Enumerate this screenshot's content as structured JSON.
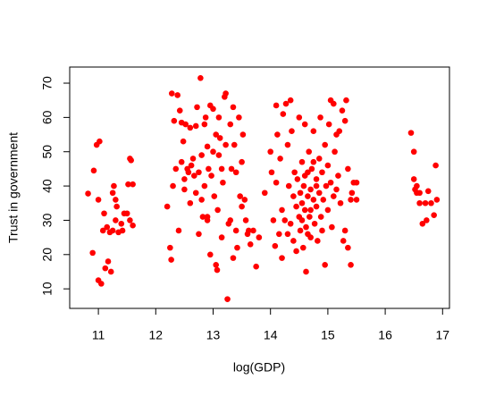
{
  "chart_data": {
    "type": "scatter",
    "x_label": "log(GDP)",
    "y_label": "Trust in government",
    "color": "#ff0000",
    "xlim": [
      10.5,
      17.12
    ],
    "ylim": [
      4.3,
      74.7
    ],
    "xticks": [
      11,
      12,
      13,
      14,
      15,
      16,
      17
    ],
    "yticks": [
      10,
      20,
      30,
      40,
      50,
      60,
      70
    ],
    "x": [
      10.82,
      10.9,
      10.92,
      10.97,
      11.0,
      11.02,
      11.05,
      11.0,
      11.08,
      11.1,
      11.12,
      11.15,
      11.17,
      11.2,
      11.22,
      11.25,
      11.27,
      11.3,
      11.32,
      11.35,
      11.4,
      11.42,
      11.45,
      11.5,
      11.52,
      11.55,
      11.57,
      11.55,
      11.6,
      11.6,
      11.25,
      11.3,
      12.2,
      12.25,
      12.27,
      12.28,
      12.3,
      12.32,
      12.35,
      12.38,
      12.4,
      12.42,
      12.45,
      12.45,
      12.48,
      12.5,
      12.5,
      12.52,
      12.55,
      12.57,
      12.6,
      12.6,
      12.62,
      12.65,
      12.67,
      12.7,
      12.7,
      12.72,
      12.75,
      12.78,
      12.8,
      12.8,
      12.82,
      12.85,
      12.85,
      12.87,
      12.9,
      12.9,
      12.92,
      12.95,
      12.95,
      12.97,
      13.0,
      13.0,
      13.02,
      13.05,
      13.05,
      13.07,
      13.08,
      13.1,
      13.1,
      13.12,
      13.15,
      13.17,
      13.2,
      13.22,
      13.22,
      13.25,
      13.27,
      13.3,
      13.3,
      13.32,
      13.35,
      13.35,
      13.37,
      13.4,
      13.4,
      13.42,
      13.45,
      13.47,
      13.5,
      13.5,
      13.52,
      13.55,
      13.57,
      13.6,
      13.62,
      13.65,
      13.7,
      13.75,
      13.8,
      12.75,
      13.15,
      12.9,
      13.9,
      14.0,
      14.02,
      14.05,
      14.08,
      14.1,
      14.1,
      14.12,
      14.15,
      14.17,
      14.2,
      14.2,
      14.22,
      14.25,
      14.27,
      14.3,
      14.3,
      14.32,
      14.35,
      14.35,
      14.37,
      14.4,
      14.4,
      14.42,
      14.45,
      14.45,
      14.47,
      14.5,
      14.5,
      14.52,
      14.52,
      14.55,
      14.55,
      14.57,
      14.58,
      14.6,
      14.6,
      14.62,
      14.62,
      14.65,
      14.65,
      14.67,
      14.68,
      14.7,
      14.7,
      14.72,
      14.75,
      14.75,
      14.77,
      14.8,
      14.8,
      14.82,
      14.85,
      14.85,
      14.87,
      14.88,
      14.9,
      14.9,
      14.92,
      14.95,
      14.95,
      14.97,
      15.0,
      15.0,
      15.02,
      15.05,
      15.05,
      15.07,
      15.1,
      15.1,
      15.12,
      15.15,
      15.15,
      15.18,
      15.2,
      15.22,
      15.25,
      15.27,
      15.3,
      15.3,
      15.32,
      15.35,
      15.35,
      15.4,
      15.4,
      15.42,
      15.45,
      15.5,
      15.5,
      14.6,
      14.7,
      14.55,
      14.8,
      14.65,
      14.75,
      16.45,
      16.5,
      16.5,
      16.52,
      16.55,
      16.6,
      16.6,
      16.65,
      16.7,
      16.72,
      16.75,
      16.8,
      16.85,
      16.88,
      16.9,
      16.55
    ],
    "values": [
      37.8,
      20.5,
      44.5,
      52,
      12.5,
      53,
      11.5,
      36,
      27,
      32,
      16,
      28,
      18,
      26.5,
      15,
      38,
      40,
      36,
      34,
      26.5,
      29,
      27,
      32,
      32,
      40.5,
      48,
      47.5,
      30,
      28.5,
      40.5,
      27,
      30,
      34,
      22,
      18.5,
      67,
      40,
      59,
      45,
      66.5,
      27,
      62,
      58.5,
      47,
      53,
      42,
      39,
      58,
      45,
      44,
      57,
      35,
      46,
      48,
      43,
      57.5,
      38,
      63,
      44,
      71.5,
      49,
      36,
      31,
      58,
      40,
      60,
      51.5,
      30,
      45,
      63.5,
      20,
      43,
      62.5,
      50,
      37,
      55,
      17,
      15.5,
      33,
      49,
      60,
      54,
      45,
      41,
      66,
      67,
      52,
      7,
      29,
      30,
      58,
      45,
      63,
      19,
      52,
      27,
      44,
      22,
      60,
      37,
      34,
      47,
      55,
      36,
      30,
      26,
      27,
      23,
      27,
      16.5,
      25,
      26,
      25,
      31,
      38,
      50,
      44,
      30,
      22.5,
      63.5,
      41,
      55,
      26,
      48,
      33,
      19,
      61,
      30,
      64,
      52,
      26,
      40,
      65,
      29,
      56,
      37,
      24,
      44,
      34,
      21,
      42,
      60,
      31,
      38,
      27,
      47,
      35,
      22,
      40,
      58,
      33,
      28,
      15,
      44,
      37,
      50,
      31,
      25,
      39,
      45,
      36,
      56,
      29,
      42,
      34,
      24,
      48,
      38,
      60,
      31,
      44,
      27,
      36,
      52,
      17,
      40,
      46,
      33,
      58,
      65,
      41,
      28,
      64,
      37,
      50,
      55,
      39,
      43,
      56,
      35,
      62,
      24,
      27,
      59,
      65,
      22,
      45,
      17,
      36,
      38,
      41,
      36,
      41,
      43,
      33,
      30,
      40,
      26,
      47,
      55.5,
      50,
      42,
      39,
      38,
      38,
      35,
      29,
      35,
      30,
      38.5,
      35,
      31.5,
      46,
      36,
      40
    ]
  }
}
